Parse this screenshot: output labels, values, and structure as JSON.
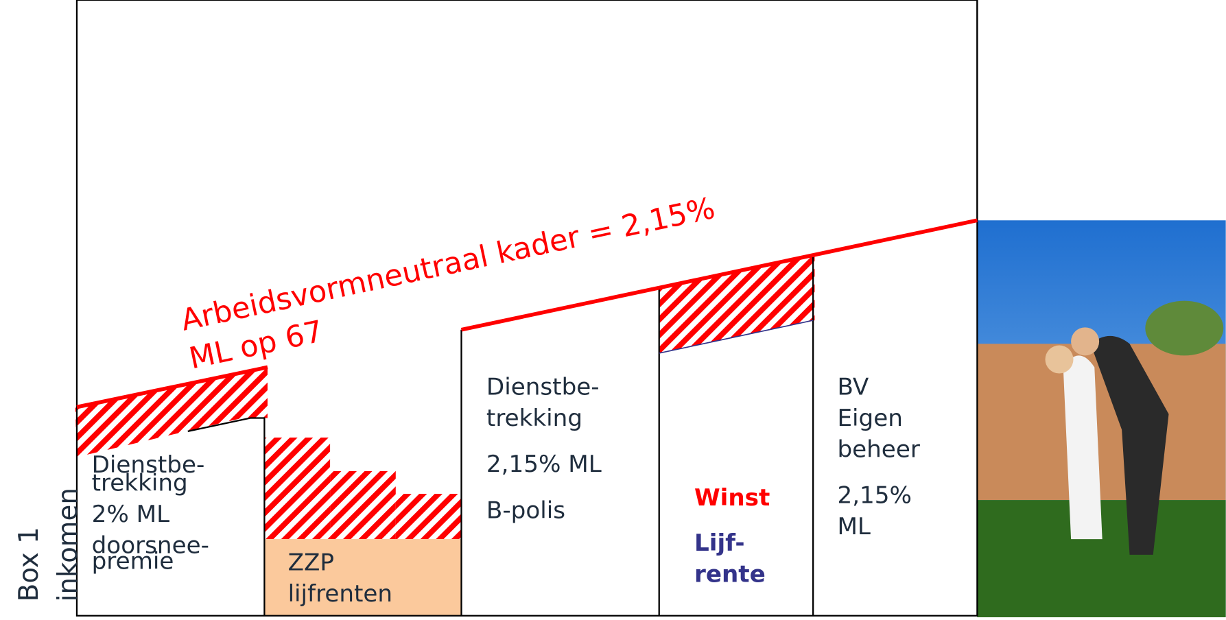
{
  "axis_label": [
    "Box 1",
    "inkomen"
  ],
  "frame_title": [
    "Arbeidsvormneutraal kader = 2,15%",
    "ML op 67"
  ],
  "blocks": [
    {
      "lines": [
        "Dienstbe-",
        "trekking",
        "2% ML",
        "doorsnee-",
        "premie"
      ]
    },
    {
      "lines": [
        "ZZP",
        "lijfrenten"
      ]
    },
    {
      "lines": [
        "Dienstbe-",
        "trekking",
        "2,15% ML",
        "B-polis"
      ]
    },
    {
      "lines": [
        "Winst",
        "Lijf-",
        "rente"
      ]
    },
    {
      "lines": [
        "BV",
        "Eigen",
        "beheer",
        "2,15%",
        "ML"
      ]
    }
  ]
}
